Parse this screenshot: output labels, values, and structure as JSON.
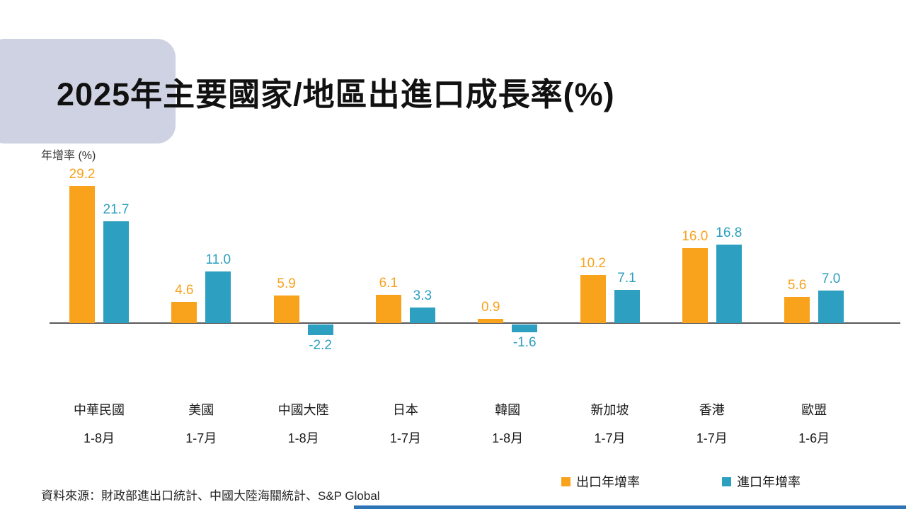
{
  "slide": {
    "title": "2025年主要國家/地區出進口成長率(%)",
    "y_axis_label": "年增率 (%)",
    "source": "資料來源：財政部進出口統計、中國大陸海關統計、S&P Global"
  },
  "colors": {
    "export_bar": "#F9A21C",
    "import_bar": "#2D9FC0",
    "title_box": "#CED2E2",
    "axis_line": "#595959",
    "bottom_accent": "#2E75B6"
  },
  "legend": [
    {
      "label": "出口年增率",
      "color": "#F9A21C"
    },
    {
      "label": "進口年增率",
      "color": "#2D9FC0"
    }
  ],
  "chart_data": {
    "type": "bar",
    "title": "2025年主要國家/地區出進口成長率(%)",
    "ylabel": "年增率 (%)",
    "categories": [
      "中華民國",
      "美國",
      "中國大陸",
      "日本",
      "韓國",
      "新加坡",
      "香港",
      "歐盟"
    ],
    "periods": [
      "1-8月",
      "1-7月",
      "1-8月",
      "1-7月",
      "1-8月",
      "1-7月",
      "1-7月",
      "1-6月"
    ],
    "series": [
      {
        "name": "出口年增率",
        "color": "#F9A21C",
        "values": [
          29.2,
          4.6,
          5.9,
          6.1,
          0.9,
          10.2,
          16.0,
          5.6
        ]
      },
      {
        "name": "進口年增率",
        "color": "#2D9FC0",
        "values": [
          21.7,
          11.0,
          -2.2,
          3.3,
          -1.6,
          7.1,
          16.8,
          7.0
        ]
      }
    ],
    "ylim": [
      -5,
      32
    ],
    "grid": false,
    "legend_position": "bottom-right",
    "value_labels": true,
    "value_label_decimals": 1
  }
}
